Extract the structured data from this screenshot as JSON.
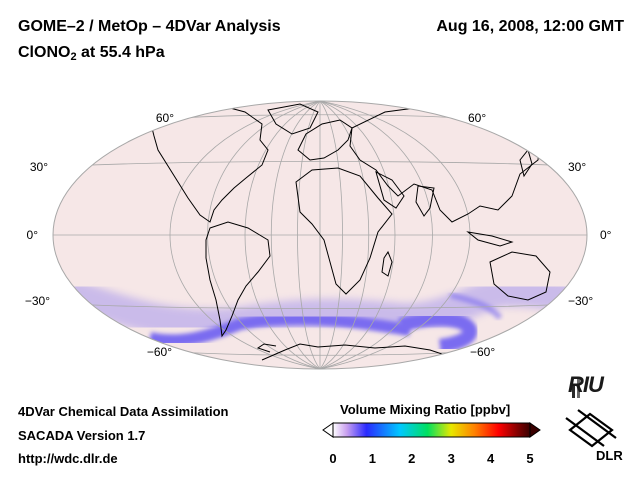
{
  "header": {
    "title_left": "GOME–2 / MetOp – 4DVar Analysis",
    "title_right": "Aug 16, 2008, 12:00 GMT",
    "subtitle_main": "ClONO",
    "subtitle_sub": "2",
    "subtitle_rest": " at 55.4 hPa"
  },
  "map": {
    "projection": "Aitoff / Hammer global",
    "lat_labels_left": [
      "60°",
      "30°",
      "0°",
      "−30°",
      "−60°"
    ],
    "lat_labels_right": [
      "60°",
      "30°",
      "0°",
      "−30°",
      "−60°"
    ],
    "colors": {
      "background": "#f6e7e7",
      "enhanced_band": "#7a6cf0",
      "graticule": "#a8a8a8",
      "coastline": "#000000"
    }
  },
  "colorbar": {
    "title": "Volume Mixing Ratio [ppbv]",
    "ticks": [
      "0",
      "1",
      "2",
      "3",
      "4",
      "5"
    ],
    "colors": [
      "#ffffff",
      "#c9a0f0",
      "#2a2aff",
      "#00c8ff",
      "#00e060",
      "#e8e800",
      "#ff8000",
      "#ff0000",
      "#800000",
      "#3a0000"
    ]
  },
  "footer": {
    "line1": "4DVar Chemical Data Assimilation",
    "line2": "SACADA Version 1.7",
    "line3": "http://wdc.dlr.de"
  },
  "logos": {
    "riu": "RIU",
    "dlr": "DLR"
  }
}
